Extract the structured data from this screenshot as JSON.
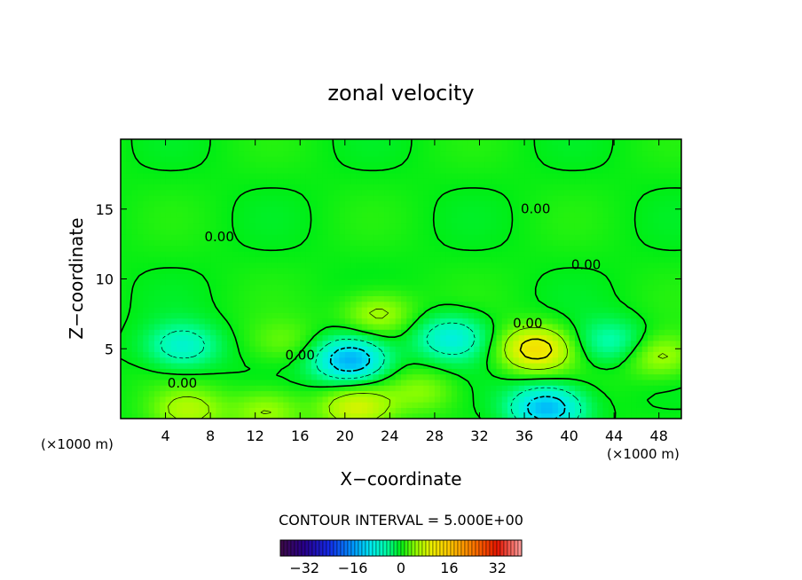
{
  "chart_data": {
    "type": "heatmap",
    "title": "zonal velocity",
    "xlabel": "X−coordinate",
    "ylabel": "Z−coordinate",
    "x_unit_left": "(×1000 m)",
    "x_unit_right": "(×1000 m)",
    "xlim": [
      0,
      50
    ],
    "ylim": [
      0,
      20
    ],
    "xticks": [
      4,
      8,
      12,
      16,
      20,
      24,
      28,
      32,
      36,
      40,
      44,
      48
    ],
    "xtick_labels": [
      "4",
      "8",
      "12",
      "16",
      "20",
      "24",
      "28",
      "32",
      "36",
      "40",
      "44",
      "48"
    ],
    "yticks": [
      5,
      10,
      15
    ],
    "ytick_labels": [
      "5",
      "10",
      "15"
    ],
    "contour_interval_text": "CONTOUR INTERVAL = 5.000E+00",
    "contour_labels": [
      {
        "text": "0.00",
        "x": 41.5,
        "y": 11.0
      },
      {
        "text": "0.00",
        "x": 36.3,
        "y": 6.8
      },
      {
        "text": "0.00",
        "x": 16.0,
        "y": 4.5
      },
      {
        "text": "0.00",
        "x": 5.5,
        "y": 2.5
      },
      {
        "text": "0.00",
        "x": 37.0,
        "y": 15.0
      },
      {
        "text": "0.00",
        "x": 8.8,
        "y": 13.0
      }
    ],
    "features": [
      {
        "name": "min1",
        "x": 20.5,
        "y": 4.2,
        "value": -15
      },
      {
        "name": "min2",
        "x": 38.0,
        "y": 0.8,
        "value": -14
      },
      {
        "name": "min3",
        "x": 5.5,
        "y": 5.2,
        "value": -8
      },
      {
        "name": "min4",
        "x": 29.5,
        "y": 5.8,
        "value": -9
      },
      {
        "name": "min5",
        "x": 43.8,
        "y": 5.5,
        "value": -6
      },
      {
        "name": "max1",
        "x": 37.0,
        "y": 5.0,
        "value": 12
      },
      {
        "name": "max2",
        "x": 21.0,
        "y": 0.8,
        "value": 8
      },
      {
        "name": "max3",
        "x": 6.0,
        "y": 0.6,
        "value": 6
      },
      {
        "name": "max4",
        "x": 13.0,
        "y": 0.6,
        "value": 5
      },
      {
        "name": "max5",
        "x": 23.0,
        "y": 7.5,
        "value": 6
      },
      {
        "name": "max6",
        "x": 48.0,
        "y": 4.5,
        "value": 6
      },
      {
        "name": "max7",
        "x": 27.0,
        "y": 2.0,
        "value": 4
      },
      {
        "name": "max8",
        "x": 14.5,
        "y": 5.5,
        "value": 3
      }
    ],
    "colorbar": {
      "range": [
        -40,
        40
      ],
      "tick_values": [
        -32,
        -16,
        0,
        16,
        32
      ],
      "tick_labels": [
        "−32",
        "−16",
        "0",
        "16",
        "32"
      ],
      "colors": [
        "#4b0a2e",
        "#3f0078",
        "#1c00c8",
        "#0048ff",
        "#00a0ff",
        "#00ffea",
        "#00ff9a",
        "#00ff00",
        "#aaff00",
        "#ffff00",
        "#ffa000",
        "#ff3000",
        "#e00000",
        "#ff9c9c"
      ]
    }
  }
}
